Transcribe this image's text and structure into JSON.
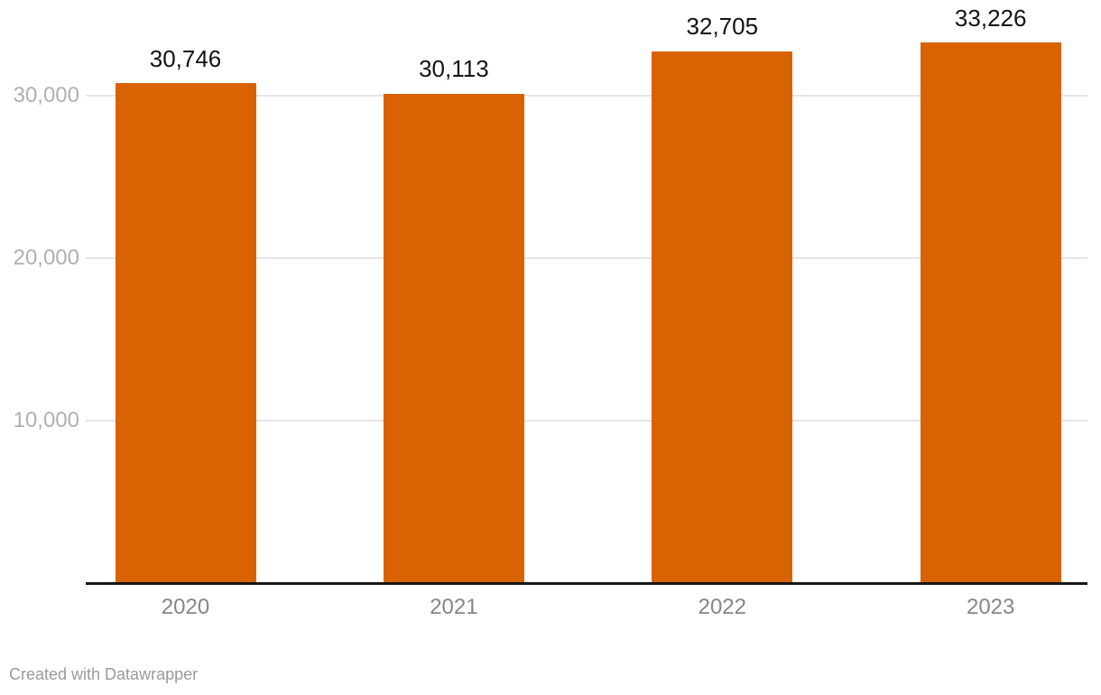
{
  "chart_data": {
    "type": "bar",
    "categories": [
      "2020",
      "2021",
      "2022",
      "2023"
    ],
    "values": [
      30746,
      30113,
      32705,
      33226
    ],
    "value_labels": [
      "30,746",
      "30,113",
      "32,705",
      "33,226"
    ],
    "y_ticks": [
      {
        "value": 10000,
        "label": "10,000"
      },
      {
        "value": 20000,
        "label": "20,000"
      },
      {
        "value": 30000,
        "label": "30,000"
      }
    ],
    "ylim": [
      0,
      35000
    ],
    "grid": true,
    "legend": "none",
    "title": "",
    "xlabel": "",
    "ylabel": ""
  },
  "colors": {
    "bar": "#d96303",
    "gridline": "#e4e4e4",
    "axis_line": "#161616",
    "value_label": "#131313",
    "y_tick_label": "#b0b0b0",
    "x_tick_label": "#868686",
    "credit_text": "#9a9a9a",
    "background": "#ffffff"
  },
  "footer": {
    "credit": "Created with Datawrapper"
  }
}
